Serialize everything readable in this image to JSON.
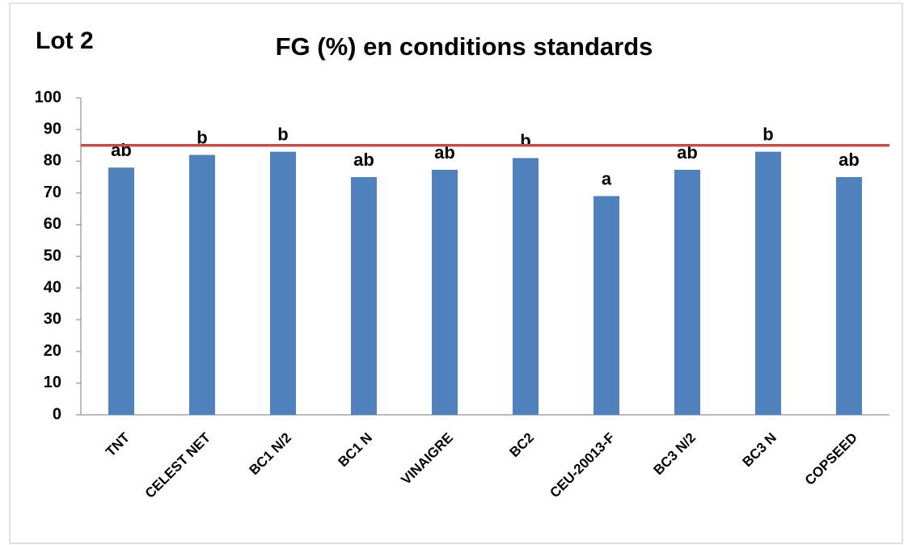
{
  "chart_data": {
    "type": "bar",
    "title": "FG (%) en conditions standards",
    "subtitle": "Lot 2",
    "categories": [
      "TNT",
      "CELEST NET",
      "BC1 N/2",
      "BC1 N",
      "VINAIGRE",
      "BC2",
      "CEU-20013-F",
      "BC3 N/2",
      "BC3 N",
      "COPSEED"
    ],
    "values": [
      78,
      82,
      83,
      75,
      77.3,
      81,
      69,
      77.3,
      83,
      75
    ],
    "annotations": [
      "ab",
      "b",
      "b",
      "ab",
      "ab",
      "b",
      "a",
      "ab",
      "b",
      "ab"
    ],
    "color": "#4f81bd",
    "reference_line": {
      "value": 85,
      "color": "#c0504d"
    },
    "ylim": [
      0,
      100
    ],
    "yticks": [
      0,
      10,
      20,
      30,
      40,
      50,
      60,
      70,
      80,
      90,
      100
    ],
    "grid": false
  }
}
